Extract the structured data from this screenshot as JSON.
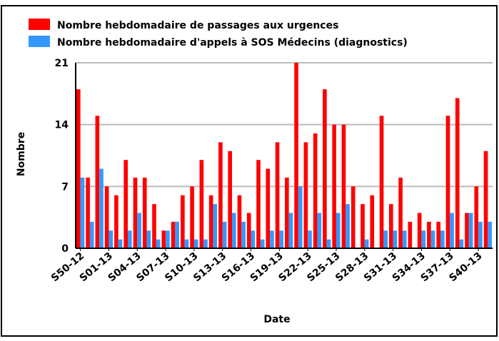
{
  "chart_data": {
    "type": "bar",
    "y_label": "Nombre",
    "x_label": "Date",
    "categories": [
      "S50-12",
      null,
      null,
      "S01-13",
      null,
      null,
      "S04-13",
      null,
      null,
      "S07-13",
      null,
      null,
      "S10-13",
      null,
      null,
      "S13-13",
      null,
      null,
      "S16-13",
      null,
      null,
      "S19-13",
      null,
      null,
      "S22-13",
      null,
      null,
      "S25-13",
      null,
      null,
      "S28-13",
      null,
      null,
      "S31-13",
      null,
      null,
      "S34-13",
      null,
      null,
      "S37-13",
      null,
      null,
      "S40-13",
      null
    ],
    "series": [
      {
        "name": "Nombre hebdomadaire de passages aux urgences",
        "color": "#ff0000",
        "values": [
          18,
          8,
          15,
          7,
          6,
          10,
          8,
          8,
          5,
          2,
          3,
          6,
          7,
          10,
          6,
          12,
          11,
          6,
          4,
          10,
          9,
          12,
          8,
          21,
          12,
          13,
          18,
          14,
          14,
          7,
          5,
          6,
          15,
          5,
          8,
          3,
          4,
          3,
          3,
          15,
          17,
          4,
          7,
          11
        ]
      },
      {
        "name": "Nombre hebdomadaire d'appels à SOS Médecins (diagnostics)",
        "color": "#3399ff",
        "values": [
          8,
          3,
          9,
          2,
          1,
          2,
          4,
          2,
          1,
          2,
          3,
          1,
          1,
          1,
          5,
          3,
          4,
          3,
          2,
          1,
          2,
          2,
          4,
          7,
          2,
          4,
          1,
          4,
          5,
          0,
          1,
          0,
          2,
          2,
          2,
          0,
          2,
          2,
          2,
          4,
          1,
          4,
          3,
          3
        ]
      }
    ],
    "ylim": [
      0,
      21
    ],
    "yticks": [
      0,
      7,
      14,
      21
    ],
    "grid": true
  }
}
